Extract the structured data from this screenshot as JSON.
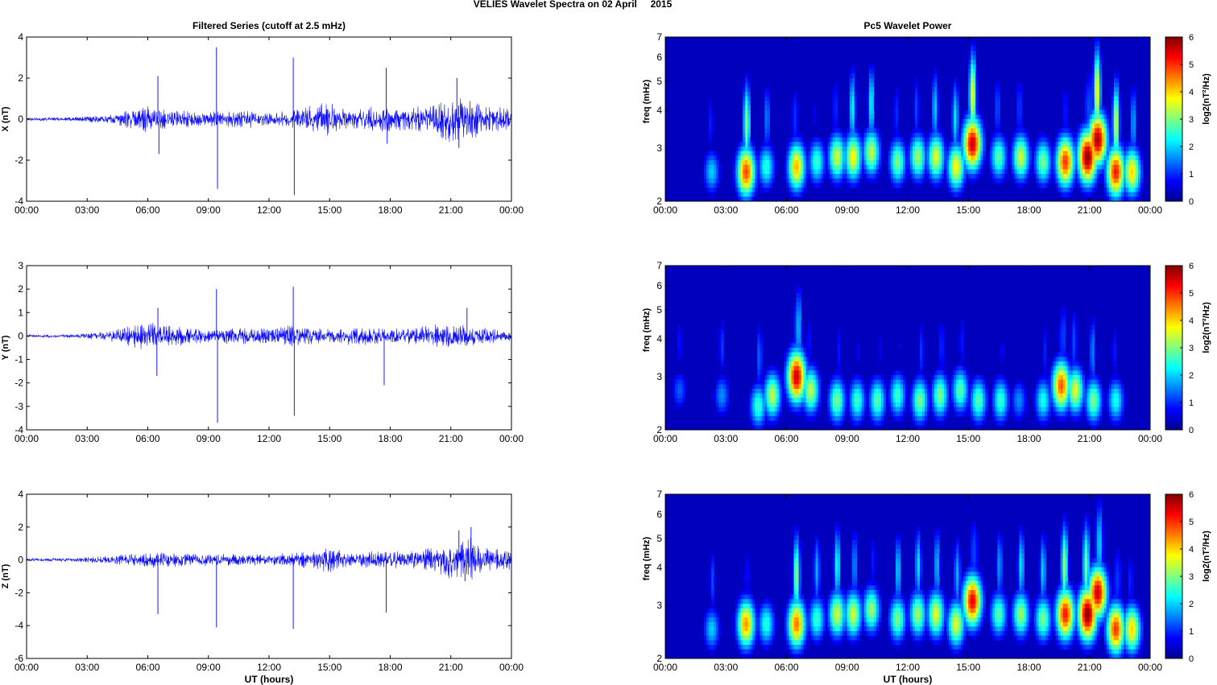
{
  "figure": {
    "title": "VELIES Wavelet Spectra on 02 April     2015"
  },
  "chart_data": [
    {
      "type": "line",
      "panel": "X",
      "title": "Filtered Series (cutoff at 2.5 mHz)",
      "xlabel": "",
      "ylabel": "X (nT)",
      "xticks": [
        "00:00",
        "03:00",
        "06:00",
        "09:00",
        "12:00",
        "15:00",
        "18:00",
        "21:00",
        "00:00"
      ],
      "xlim": [
        0,
        24
      ],
      "ylim": [
        -4,
        4
      ],
      "yticks": [
        -4,
        -2,
        0,
        2,
        4
      ],
      "color": "#0000ff",
      "grid": false,
      "activity": [
        [
          0,
          0.05
        ],
        [
          2,
          0.06
        ],
        [
          4,
          0.15
        ],
        [
          5,
          0.3
        ],
        [
          6,
          0.45
        ],
        [
          7,
          0.3
        ],
        [
          9,
          0.25
        ],
        [
          11,
          0.3
        ],
        [
          12,
          0.2
        ],
        [
          13,
          0.3
        ],
        [
          14,
          0.45
        ],
        [
          15,
          0.55
        ],
        [
          16,
          0.3
        ],
        [
          17,
          0.4
        ],
        [
          18,
          0.45
        ],
        [
          19,
          0.35
        ],
        [
          20,
          0.5
        ],
        [
          21,
          0.75
        ],
        [
          22,
          0.65
        ],
        [
          23,
          0.45
        ],
        [
          24,
          0.35
        ]
      ],
      "spikes": [
        [
          6.5,
          2.1
        ],
        [
          6.55,
          -1.7
        ],
        [
          9.4,
          3.5
        ],
        [
          9.45,
          -3.4
        ],
        [
          13.2,
          3.0
        ],
        [
          13.25,
          -3.7
        ],
        [
          17.8,
          2.5
        ],
        [
          17.85,
          -1.2
        ],
        [
          21.3,
          2.0
        ],
        [
          21.4,
          -1.4
        ]
      ]
    },
    {
      "type": "line",
      "panel": "Y",
      "title": "",
      "xlabel": "",
      "ylabel": "Y (nT)",
      "xticks": [
        "00:00",
        "03:00",
        "06:00",
        "09:00",
        "12:00",
        "15:00",
        "18:00",
        "21:00",
        "00:00"
      ],
      "xlim": [
        0,
        24
      ],
      "ylim": [
        -4,
        3
      ],
      "yticks": [
        -4,
        -3,
        -2,
        -1,
        0,
        1,
        2,
        3
      ],
      "color": "#0000ff",
      "grid": false,
      "activity": [
        [
          0,
          0.04
        ],
        [
          2,
          0.05
        ],
        [
          4,
          0.12
        ],
        [
          5,
          0.3
        ],
        [
          6,
          0.4
        ],
        [
          7,
          0.3
        ],
        [
          9,
          0.2
        ],
        [
          11,
          0.25
        ],
        [
          12,
          0.2
        ],
        [
          13,
          0.3
        ],
        [
          14,
          0.25
        ],
        [
          15,
          0.2
        ],
        [
          16,
          0.25
        ],
        [
          17,
          0.25
        ],
        [
          18,
          0.2
        ],
        [
          20,
          0.3
        ],
        [
          21,
          0.4
        ],
        [
          22,
          0.3
        ],
        [
          23,
          0.2
        ],
        [
          24,
          0.15
        ]
      ],
      "spikes": [
        [
          6.5,
          1.2
        ],
        [
          6.45,
          -1.7
        ],
        [
          9.4,
          2.0
        ],
        [
          9.45,
          -3.7
        ],
        [
          13.2,
          2.1
        ],
        [
          13.25,
          -3.4
        ],
        [
          17.7,
          -2.1
        ],
        [
          21.8,
          1.2
        ]
      ]
    },
    {
      "type": "line",
      "panel": "Z",
      "title": "",
      "xlabel": "UT (hours)",
      "ylabel": "Z (nT)",
      "xticks": [
        "00:00",
        "03:00",
        "06:00",
        "09:00",
        "12:00",
        "15:00",
        "18:00",
        "21:00",
        "00:00"
      ],
      "xlim": [
        0,
        24
      ],
      "ylim": [
        -6,
        4
      ],
      "yticks": [
        -6,
        -4,
        -2,
        0,
        2,
        4
      ],
      "color": "#0000ff",
      "grid": false,
      "activity": [
        [
          0,
          0.06
        ],
        [
          2,
          0.08
        ],
        [
          4,
          0.15
        ],
        [
          5,
          0.25
        ],
        [
          6,
          0.35
        ],
        [
          7,
          0.3
        ],
        [
          9,
          0.25
        ],
        [
          11,
          0.25
        ],
        [
          12,
          0.2
        ],
        [
          13,
          0.3
        ],
        [
          14,
          0.35
        ],
        [
          15,
          0.5
        ],
        [
          16,
          0.3
        ],
        [
          17,
          0.35
        ],
        [
          18,
          0.35
        ],
        [
          19,
          0.35
        ],
        [
          20,
          0.55
        ],
        [
          21,
          0.8
        ],
        [
          22,
          0.9
        ],
        [
          23,
          0.5
        ],
        [
          24,
          0.4
        ]
      ],
      "spikes": [
        [
          6.5,
          -3.3
        ],
        [
          9.4,
          -4.1
        ],
        [
          13.2,
          -4.2
        ],
        [
          17.8,
          -3.2
        ],
        [
          21.4,
          1.8
        ],
        [
          22.0,
          2.0
        ],
        [
          21.7,
          -1.3
        ]
      ]
    },
    {
      "type": "heatmap",
      "panel": "X",
      "title": "Pc5 Wavelet Power",
      "xlabel": "",
      "ylabel": "freq (mHz)",
      "xticks": [
        "00:00",
        "03:00",
        "06:00",
        "09:00",
        "12:00",
        "15:00",
        "18:00",
        "21:00",
        "00:00"
      ],
      "xlim": [
        0,
        24
      ],
      "ylim": [
        2,
        7
      ],
      "yscale": "log",
      "yticks": [
        2,
        3,
        4,
        5,
        6,
        7
      ],
      "colorbar": {
        "label": "log2(nT²/Hz)",
        "range": [
          0,
          6
        ],
        "ticks": [
          0,
          1,
          2,
          3,
          4,
          5,
          6
        ],
        "colormap": "jet"
      },
      "blobs": [
        [
          2.3,
          2.5,
          2.0
        ],
        [
          4.0,
          2.5,
          4.9
        ],
        [
          5.0,
          2.6,
          2.5
        ],
        [
          6.5,
          2.6,
          4.2
        ],
        [
          7.5,
          2.7,
          2.6
        ],
        [
          8.5,
          2.8,
          3.5
        ],
        [
          9.3,
          2.8,
          3.8
        ],
        [
          10.2,
          2.9,
          3.4
        ],
        [
          11.5,
          2.7,
          3.0
        ],
        [
          12.5,
          2.8,
          3.2
        ],
        [
          13.4,
          2.8,
          3.6
        ],
        [
          14.4,
          2.6,
          3.8
        ],
        [
          15.2,
          3.1,
          5.6
        ],
        [
          16.5,
          2.8,
          2.8
        ],
        [
          17.6,
          2.8,
          3.5
        ],
        [
          18.7,
          2.7,
          3.0
        ],
        [
          19.8,
          2.7,
          5.0
        ],
        [
          20.9,
          2.8,
          6.0
        ],
        [
          21.4,
          3.2,
          5.8
        ],
        [
          22.3,
          2.5,
          5.2
        ],
        [
          23.1,
          2.5,
          4.0
        ]
      ]
    },
    {
      "type": "heatmap",
      "panel": "Y",
      "title": "",
      "xlabel": "",
      "ylabel": "freq (mHz)",
      "xticks": [
        "00:00",
        "03:00",
        "06:00",
        "09:00",
        "12:00",
        "15:00",
        "18:00",
        "21:00",
        "00:00"
      ],
      "xlim": [
        0,
        24
      ],
      "ylim": [
        2,
        7
      ],
      "yscale": "log",
      "yticks": [
        2,
        3,
        4,
        5,
        6,
        7
      ],
      "colorbar": {
        "label": "log2(nT²/Hz)",
        "range": [
          0,
          6
        ],
        "ticks": [
          0,
          1,
          2,
          3,
          4,
          5,
          6
        ],
        "colormap": "jet"
      },
      "blobs": [
        [
          0.7,
          2.7,
          1.3
        ],
        [
          2.8,
          2.6,
          1.6
        ],
        [
          4.6,
          2.4,
          2.6
        ],
        [
          5.3,
          2.6,
          3.4
        ],
        [
          6.5,
          3.0,
          5.6
        ],
        [
          7.2,
          2.7,
          3.4
        ],
        [
          8.5,
          2.5,
          3.0
        ],
        [
          9.5,
          2.5,
          2.6
        ],
        [
          10.5,
          2.5,
          2.8
        ],
        [
          11.5,
          2.6,
          2.6
        ],
        [
          12.6,
          2.5,
          3.0
        ],
        [
          13.6,
          2.6,
          3.0
        ],
        [
          14.6,
          2.7,
          2.8
        ],
        [
          15.5,
          2.5,
          2.8
        ],
        [
          16.6,
          2.5,
          2.6
        ],
        [
          17.5,
          2.5,
          1.6
        ],
        [
          18.7,
          2.5,
          2.4
        ],
        [
          19.6,
          2.8,
          4.8
        ],
        [
          20.3,
          2.7,
          3.6
        ],
        [
          21.2,
          2.5,
          3.0
        ],
        [
          22.3,
          2.5,
          2.4
        ]
      ]
    },
    {
      "type": "heatmap",
      "panel": "Z",
      "title": "",
      "xlabel": "UT (hours)",
      "ylabel": "freq (mHz)",
      "xticks": [
        "00:00",
        "03:00",
        "06:00",
        "09:00",
        "12:00",
        "15:00",
        "18:00",
        "21:00",
        "00:00"
      ],
      "xlim": [
        0,
        24
      ],
      "ylim": [
        2,
        7
      ],
      "yscale": "log",
      "yticks": [
        2,
        3,
        4,
        5,
        6,
        7
      ],
      "colorbar": {
        "label": "log2(nT²/Hz)",
        "range": [
          0,
          6
        ],
        "ticks": [
          0,
          1,
          2,
          3,
          4,
          5,
          6
        ],
        "colormap": "jet"
      },
      "blobs": [
        [
          2.3,
          2.5,
          2.0
        ],
        [
          4.0,
          2.6,
          4.4
        ],
        [
          5.0,
          2.6,
          2.5
        ],
        [
          6.5,
          2.6,
          4.6
        ],
        [
          7.5,
          2.7,
          2.6
        ],
        [
          8.5,
          2.8,
          3.5
        ],
        [
          9.3,
          2.8,
          3.5
        ],
        [
          10.2,
          2.9,
          3.2
        ],
        [
          11.5,
          2.7,
          3.0
        ],
        [
          12.5,
          2.8,
          3.2
        ],
        [
          13.4,
          2.8,
          3.6
        ],
        [
          14.4,
          2.6,
          3.6
        ],
        [
          15.2,
          3.1,
          5.4
        ],
        [
          16.5,
          2.8,
          2.8
        ],
        [
          17.6,
          2.8,
          3.2
        ],
        [
          18.7,
          2.7,
          3.0
        ],
        [
          19.8,
          2.8,
          5.2
        ],
        [
          20.9,
          2.8,
          6.0
        ],
        [
          21.4,
          3.3,
          5.6
        ],
        [
          22.3,
          2.5,
          5.0
        ],
        [
          23.1,
          2.5,
          4.0
        ]
      ]
    }
  ]
}
